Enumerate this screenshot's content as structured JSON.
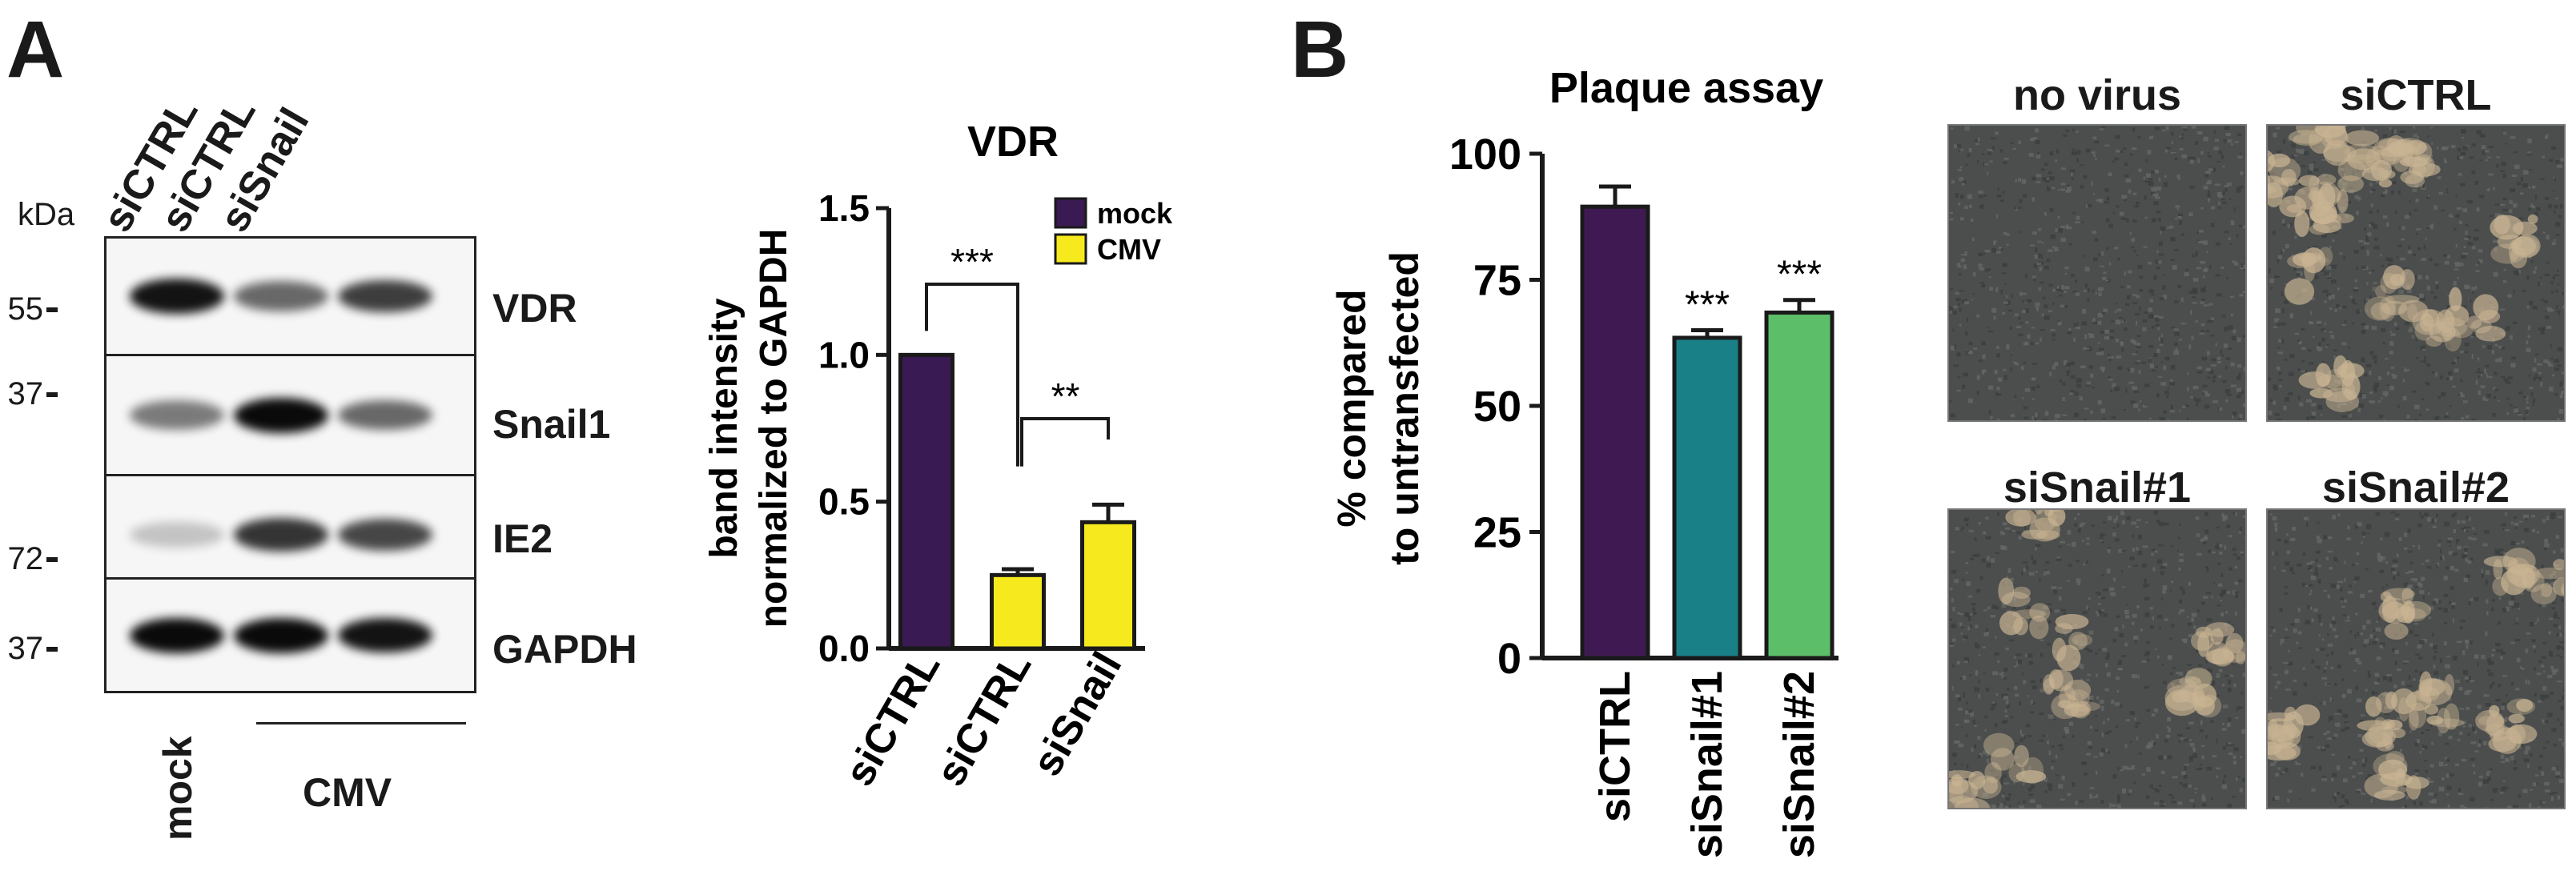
{
  "panelA": {
    "letter": "A",
    "blot": {
      "lanes": [
        "siCTRL",
        "siCTRL",
        "siSnail"
      ],
      "unit_label": "kDa",
      "rows": [
        {
          "protein": "VDR",
          "mw": "55",
          "bands": [
            0.95,
            0.55,
            0.75
          ]
        },
        {
          "protein": "Snail1",
          "mw": "37",
          "bands": [
            0.45,
            1.0,
            0.55
          ]
        },
        {
          "protein": "IE2",
          "mw": "72",
          "bands": [
            0.1,
            0.8,
            0.7
          ]
        },
        {
          "protein": "GAPDH",
          "mw": "37",
          "bands": [
            1.0,
            1.0,
            0.95
          ]
        }
      ],
      "conditions": {
        "mock": "mock",
        "cmv": "CMV"
      }
    },
    "chart_data": {
      "type": "bar",
      "title": "VDR",
      "ylabel": "band intensity normalized to GAPDH",
      "ylabel_lines": [
        "band intensity",
        "normalized to GAPDH"
      ],
      "categories": [
        "siCTRL",
        "siCTRL",
        "siSnail"
      ],
      "values": [
        1.0,
        0.25,
        0.43
      ],
      "errors": [
        0,
        0.02,
        0.06
      ],
      "groups": [
        "mock",
        "CMV",
        "CMV"
      ],
      "ylim": [
        0,
        1.5
      ],
      "yticks": [
        "0.0",
        "0.5",
        "1.0",
        "1.5"
      ],
      "legend": [
        {
          "name": "mock",
          "color": "#3a1a52"
        },
        {
          "name": "CMV",
          "color": "#f6ea1e"
        }
      ],
      "significance": [
        {
          "from": 0,
          "to": 1,
          "label": "***"
        },
        {
          "from": 1,
          "to": 2,
          "label": "**"
        }
      ]
    }
  },
  "panelB": {
    "letter": "B",
    "chart_data": {
      "type": "bar",
      "title": "Plaque assay",
      "ylabel": "% compared to untransfected",
      "ylabel_lines": [
        "% compared",
        "to untransfected"
      ],
      "categories": [
        "siCTRL",
        "siSnail#1",
        "siSnail#2"
      ],
      "values": [
        89.5,
        63.5,
        68.5
      ],
      "errors": [
        4.0,
        1.5,
        2.5
      ],
      "colors": [
        "#3f1a52",
        "#1a8088",
        "#5cbe68"
      ],
      "ylim": [
        0,
        100
      ],
      "yticks": [
        "0",
        "25",
        "50",
        "75",
        "100"
      ],
      "significance_labels": [
        "",
        "***",
        "***"
      ]
    },
    "images": [
      {
        "title": "no virus",
        "plaques": 0
      },
      {
        "title": "siCTRL",
        "plaques": 14
      },
      {
        "title": "siSnail#1",
        "plaques": 8
      },
      {
        "title": "siSnail#2",
        "plaques": 9
      }
    ],
    "colors": {
      "cell_dark": "#4b4e4d",
      "cell_mid": "#656865",
      "plaque": "#c9b493"
    }
  }
}
